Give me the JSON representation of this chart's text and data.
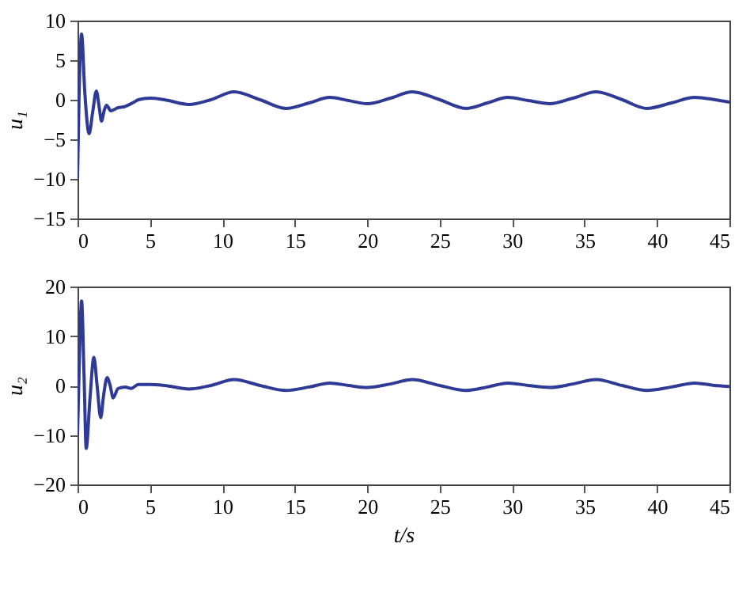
{
  "chart_data": [
    {
      "type": "line",
      "ylabel": "u₁",
      "xlim": [
        0,
        45
      ],
      "ylim": [
        -15,
        10
      ],
      "xticks": [
        0,
        5,
        10,
        15,
        20,
        25,
        30,
        35,
        40,
        45
      ],
      "yticks": [
        -15,
        -10,
        -5,
        0,
        5,
        10
      ],
      "grid": false,
      "line_style": "solid",
      "marker": "none",
      "series": [
        {
          "color": "#2e3a96",
          "x": [
            0,
            0.1,
            0.28,
            0.5,
            0.8,
            1.05,
            1.3,
            1.5,
            1.65,
            1.85,
            2.0,
            2.3,
            2.8,
            3.2,
            3.9,
            4.2,
            5,
            6,
            7.7,
            9.2,
            10.8,
            12.6,
            14.4,
            16,
            17.4,
            18.7,
            20.0,
            21.6,
            23.1,
            25,
            26.8,
            28.3,
            29.7,
            31.1,
            32.6,
            34.2,
            35.8,
            37.6,
            39.3,
            41,
            42.6,
            44,
            45
          ],
          "values": [
            -10,
            0,
            8.3,
            1,
            -4.3,
            -1.5,
            1.1,
            -1,
            -2.7,
            -1.3,
            -0.7,
            -1.4,
            -1.0,
            -0.9,
            -0.3,
            0,
            0.2,
            0,
            -0.6,
            0,
            1,
            0,
            -1.1,
            -0.4,
            0.3,
            -0.1,
            -0.5,
            0.2,
            1,
            0,
            -1.1,
            -0.4,
            0.3,
            -0.1,
            -0.5,
            0.2,
            1,
            0,
            -1.1,
            -0.4,
            0.3,
            0,
            -0.3
          ]
        }
      ]
    },
    {
      "type": "line",
      "xlabel": "t/s",
      "ylabel": "u₂",
      "xlim": [
        0,
        45
      ],
      "ylim": [
        -20,
        20
      ],
      "xticks": [
        0,
        5,
        10,
        15,
        20,
        25,
        30,
        35,
        40,
        45
      ],
      "yticks": [
        -20,
        -10,
        0,
        10,
        20
      ],
      "grid": false,
      "line_style": "solid",
      "marker": "none",
      "series": [
        {
          "color": "#2e3a96",
          "x": [
            0,
            0.1,
            0.28,
            0.45,
            0.6,
            0.85,
            1.13,
            1.35,
            1.6,
            1.8,
            2.04,
            2.25,
            2.46,
            2.8,
            3.3,
            3.7,
            4.2,
            5,
            6,
            7.7,
            9.2,
            10.8,
            12.6,
            14.4,
            16,
            17.4,
            18.7,
            20.0,
            21.6,
            23.1,
            25,
            26.8,
            28.3,
            29.7,
            31.1,
            32.6,
            34.2,
            35.8,
            37.6,
            39.3,
            41,
            42.6,
            44,
            45
          ],
          "values": [
            -10,
            2,
            17.1,
            2,
            -12.7,
            -3,
            5.7,
            0,
            -6.5,
            -2,
            1.6,
            0,
            -2.5,
            -0.6,
            -0.3,
            -0.6,
            0.2,
            0.2,
            0,
            -0.7,
            0,
            1.2,
            0,
            -1,
            -0.3,
            0.5,
            0,
            -0.4,
            0.3,
            1.2,
            0,
            -1,
            -0.3,
            0.5,
            0,
            -0.4,
            0.3,
            1.2,
            0,
            -1,
            -0.3,
            0.5,
            0,
            -0.2
          ]
        }
      ]
    }
  ]
}
